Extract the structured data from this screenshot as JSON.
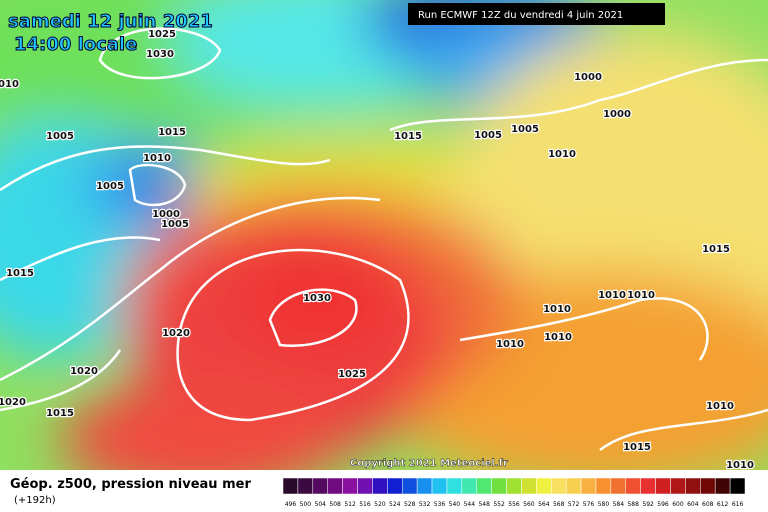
{
  "header": {
    "date": "samedi 12 juin 2021",
    "time": "14:00 locale",
    "run": "Run ECMWF 12Z du vendredi 4 juin 2021"
  },
  "footer": {
    "title": "Géop. z500, pression niveau mer",
    "lead": "(+192h)",
    "copyright": "Copyright 2021 Meteociel.fr"
  },
  "isobar_labels": [
    1025,
    1030,
    1010,
    1000,
    1000,
    1005,
    1015,
    1015,
    1005,
    1005,
    1010,
    1010,
    1005,
    1000,
    1005,
    1015,
    1015,
    1030,
    1010,
    1010,
    1010,
    1020,
    1010,
    1010,
    1020,
    1025,
    1020,
    1015,
    1010,
    1015,
    1010
  ],
  "scale": [
    496,
    500,
    504,
    508,
    512,
    516,
    520,
    524,
    528,
    532,
    536,
    540,
    544,
    548,
    552,
    556,
    560,
    564,
    568,
    572,
    576,
    580,
    584,
    588,
    592,
    596,
    600,
    604,
    608,
    612,
    616
  ]
}
